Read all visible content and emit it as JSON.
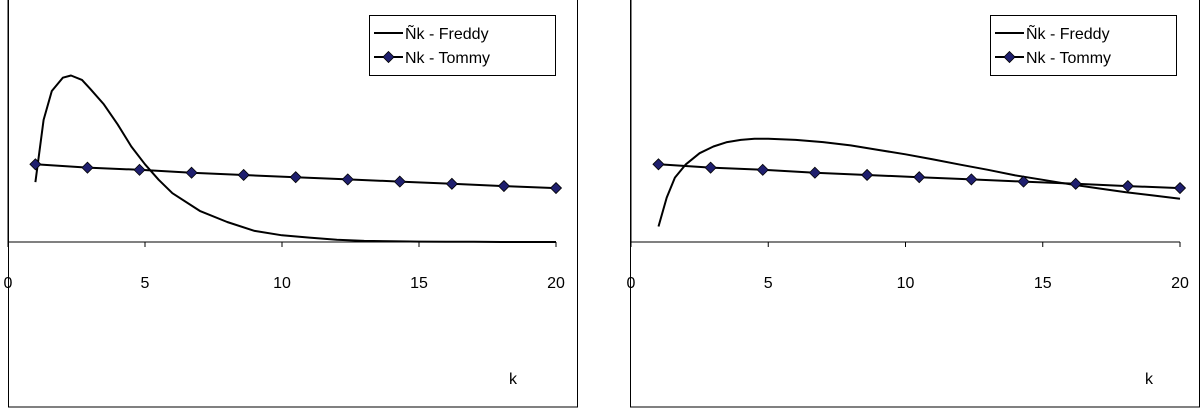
{
  "chart_data": [
    {
      "type": "line",
      "xlabel": "k",
      "xlim": [
        0,
        20
      ],
      "ylim": [
        0,
        1
      ],
      "xticks": [
        0,
        5,
        10,
        15,
        20
      ],
      "legend_position": "top-right",
      "grid": false,
      "series": [
        {
          "name": "Ñk  - Freddy",
          "color": "#000000",
          "marker": "none",
          "x": [
            1,
            1.3,
            1.6,
            2,
            2.3,
            2.7,
            3,
            3.5,
            4,
            4.5,
            5,
            5.5,
            6,
            7,
            8,
            9,
            10,
            11,
            12,
            13,
            14,
            15,
            16,
            17,
            18,
            19,
            20
          ],
          "y": [
            0.27,
            0.55,
            0.68,
            0.74,
            0.75,
            0.73,
            0.69,
            0.62,
            0.53,
            0.43,
            0.35,
            0.28,
            0.22,
            0.14,
            0.09,
            0.05,
            0.03,
            0.02,
            0.01,
            0.005,
            0.003,
            0.002,
            0.001,
            0.001,
            0.0,
            0.0,
            0.0
          ]
        },
        {
          "name": "Nk  - Tommy",
          "color": "#1f1f6e",
          "marker": "diamond",
          "x": [
            1,
            2.9,
            4.8,
            6.7,
            8.6,
            10.5,
            12.4,
            14.3,
            16.2,
            18.1,
            20
          ],
          "y": [
            0.35,
            0.335,
            0.325,
            0.312,
            0.302,
            0.292,
            0.282,
            0.272,
            0.262,
            0.252,
            0.243
          ]
        }
      ]
    },
    {
      "type": "line",
      "xlabel": "k",
      "xlim": [
        0,
        20
      ],
      "ylim": [
        0,
        1
      ],
      "xticks": [
        0,
        5,
        10,
        15,
        20
      ],
      "legend_position": "top-right",
      "grid": false,
      "series": [
        {
          "name": "Ñk  - Freddy",
          "color": "#000000",
          "marker": "none",
          "x": [
            1,
            1.3,
            1.6,
            2,
            2.5,
            3,
            3.5,
            4,
            4.5,
            5,
            6,
            7,
            8,
            9,
            10,
            11,
            12,
            13,
            14,
            15,
            16,
            17,
            18,
            19,
            20
          ],
          "y": [
            0.07,
            0.2,
            0.29,
            0.35,
            0.4,
            0.43,
            0.45,
            0.46,
            0.465,
            0.465,
            0.46,
            0.45,
            0.435,
            0.415,
            0.395,
            0.372,
            0.348,
            0.325,
            0.3,
            0.28,
            0.26,
            0.242,
            0.225,
            0.21,
            0.195
          ]
        },
        {
          "name": "Nk  - Tommy",
          "color": "#1f1f6e",
          "marker": "diamond",
          "x": [
            1,
            2.9,
            4.8,
            6.7,
            8.6,
            10.5,
            12.4,
            14.3,
            16.2,
            18.1,
            20
          ],
          "y": [
            0.35,
            0.335,
            0.325,
            0.312,
            0.302,
            0.292,
            0.282,
            0.272,
            0.262,
            0.252,
            0.243
          ]
        }
      ]
    }
  ]
}
